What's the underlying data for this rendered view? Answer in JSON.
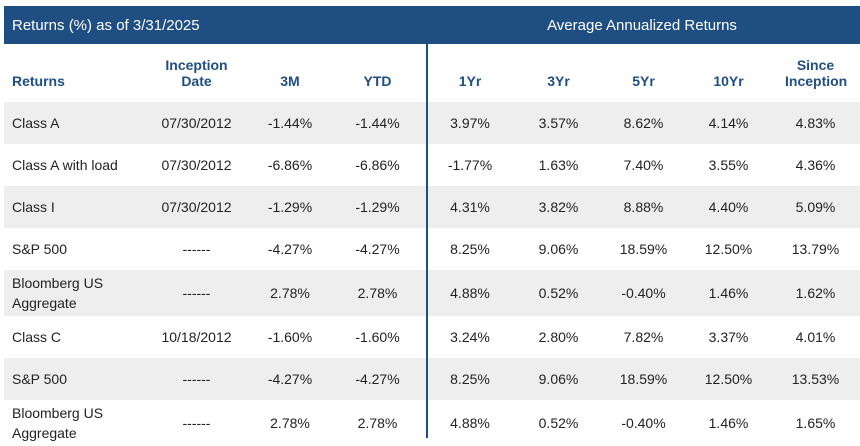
{
  "header": {
    "left_title": "Returns (%) as of 3/31/2025",
    "right_title": "Average Annualized Returns"
  },
  "columns": [
    "Returns",
    "Inception Date",
    "3M",
    "YTD",
    "1Yr",
    "3Yr",
    "5Yr",
    "10Yr",
    "Since Inception"
  ],
  "rows": [
    {
      "name": "Class A",
      "cells": [
        "07/30/2012",
        "-1.44%",
        "-1.44%",
        "3.97%",
        "3.57%",
        "8.62%",
        "4.14%",
        "4.83%"
      ]
    },
    {
      "name": "Class A with load",
      "cells": [
        "07/30/2012",
        "-6.86%",
        "-6.86%",
        "-1.77%",
        "1.63%",
        "7.40%",
        "3.55%",
        "4.36%"
      ]
    },
    {
      "name": "Class I",
      "cells": [
        "07/30/2012",
        "-1.29%",
        "-1.29%",
        "4.31%",
        "3.82%",
        "8.88%",
        "4.40%",
        "5.09%"
      ]
    },
    {
      "name": "S&P 500",
      "cells": [
        "------",
        "-4.27%",
        "-4.27%",
        "8.25%",
        "9.06%",
        "18.59%",
        "12.50%",
        "13.79%"
      ]
    },
    {
      "name": "Bloomberg US Aggregate",
      "cells": [
        "------",
        "2.78%",
        "2.78%",
        "4.88%",
        "0.52%",
        "-0.40%",
        "1.46%",
        "1.62%"
      ]
    },
    {
      "name": "Class C",
      "cells": [
        "10/18/2012",
        "-1.60%",
        "-1.60%",
        "3.24%",
        "2.80%",
        "7.82%",
        "3.37%",
        "4.01%"
      ]
    },
    {
      "name": "S&P 500",
      "cells": [
        "------",
        "-4.27%",
        "-4.27%",
        "8.25%",
        "9.06%",
        "18.59%",
        "12.50%",
        "13.53%"
      ]
    },
    {
      "name": "Bloomberg US Aggregate",
      "cells": [
        "------",
        "2.78%",
        "2.78%",
        "4.88%",
        "0.52%",
        "-0.40%",
        "1.46%",
        "1.65%"
      ]
    }
  ]
}
